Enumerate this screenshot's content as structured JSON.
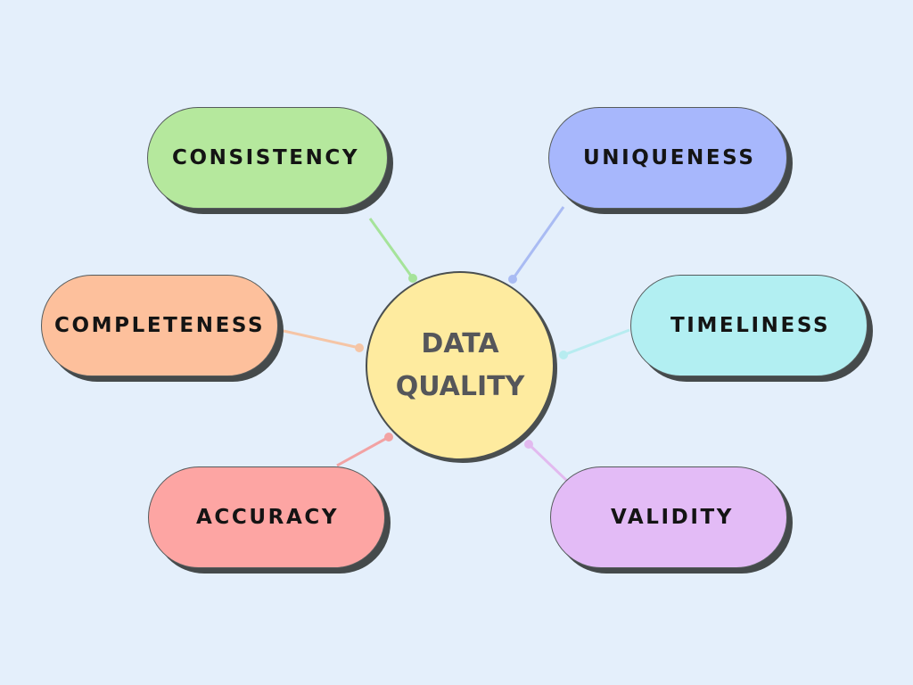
{
  "center": {
    "line1": "DATA",
    "line2": "QUALITY",
    "color": "#feeb9f"
  },
  "nodes": [
    {
      "id": "consistency",
      "label": "CONSISTENCY",
      "color": "#b5e89d",
      "line_color": "#a5e39a"
    },
    {
      "id": "uniqueness",
      "label": "UNIQUENESS",
      "color": "#a7b7fc",
      "line_color": "#a9bbf3"
    },
    {
      "id": "completeness",
      "label": "COMPLETENESS",
      "color": "#fdc09c",
      "line_color": "#f5c5a6"
    },
    {
      "id": "timeliness",
      "label": "TIMELINESS",
      "color": "#b2eff2",
      "line_color": "#b7ecf0"
    },
    {
      "id": "accuracy",
      "label": "ACCURACY",
      "color": "#fda5a3",
      "line_color": "#f2a2a3"
    },
    {
      "id": "validity",
      "label": "VALIDITY",
      "color": "#e3bbf6",
      "line_color": "#e2baef"
    }
  ]
}
